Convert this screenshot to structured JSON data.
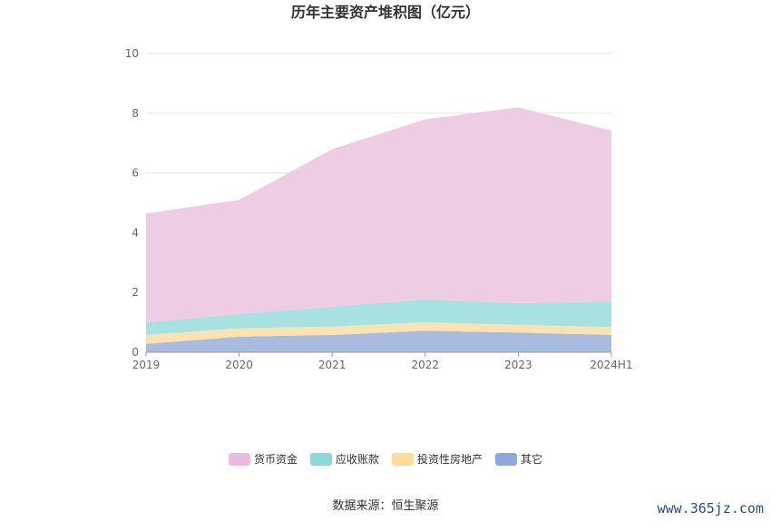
{
  "chart_data": {
    "type": "area",
    "stacked": true,
    "title": "历年主要资产堆积图（亿元）",
    "categories": [
      "2019",
      "2020",
      "2021",
      "2022",
      "2023",
      "2024H1"
    ],
    "ylim": [
      0,
      10
    ],
    "yticks": [
      0,
      2,
      4,
      6,
      8,
      10
    ],
    "grid": true,
    "legend_position": "bottom",
    "series": [
      {
        "name": "其它",
        "color": "#a9bce0",
        "legend_color": "#8eaadb",
        "values": [
          0.28,
          0.52,
          0.58,
          0.72,
          0.66,
          0.58
        ]
      },
      {
        "name": "投资性房地产",
        "color": "#fbe2b3",
        "legend_color": "#fddc9a",
        "values": [
          0.3,
          0.28,
          0.28,
          0.28,
          0.26,
          0.26
        ]
      },
      {
        "name": "应收账款",
        "color": "#a8e2e0",
        "legend_color": "#8dd9d6",
        "values": [
          0.42,
          0.48,
          0.66,
          0.78,
          0.72,
          0.86
        ]
      },
      {
        "name": "货币资金",
        "color": "#eecde4",
        "legend_color": "#e8bcdc",
        "values": [
          3.65,
          3.82,
          5.28,
          6.02,
          6.56,
          5.72
        ]
      }
    ]
  },
  "legend_order": [
    3,
    2,
    1,
    0
  ],
  "source": "数据来源：恒生聚源",
  "watermark": "www.365jz.com"
}
